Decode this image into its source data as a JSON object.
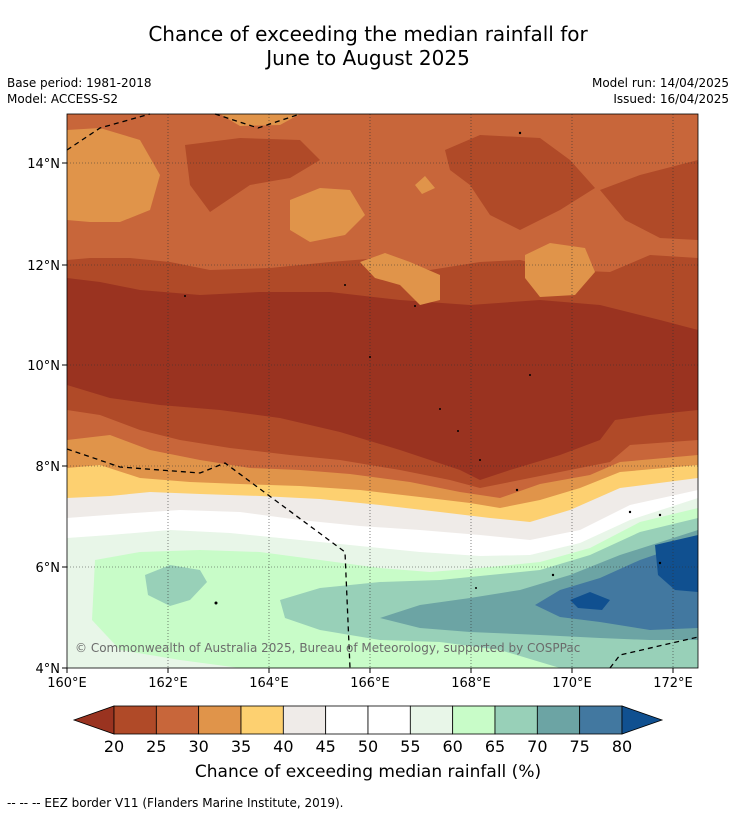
{
  "title_line1": "Chance of exceeding the median rainfall for",
  "title_line2": "June to August 2025",
  "base_period": "Base period: 1981-2018",
  "model": "Model: ACCESS-S2",
  "model_run": "Model run: 14/04/2025",
  "issued": "Issued: 16/04/2025",
  "copyright": "© Commonwealth of Australia 2025, Bureau of Meteorology, supported by COSPPac",
  "footer": "--  --  -- EEZ border V11 (Flanders Marine Institute, 2019).",
  "axes": {
    "lon_labels": [
      "160°E",
      "162°E",
      "164°E",
      "166°E",
      "168°E",
      "170°E",
      "172°E"
    ],
    "lat_labels": [
      "14°N",
      "12°N",
      "10°N",
      "8°N",
      "6°N",
      "4°N"
    ],
    "lon_range": [
      160,
      172.5
    ],
    "lat_range": [
      4,
      15
    ]
  },
  "colorbar": {
    "label": "Chance of exceeding median rainfall (%)",
    "ticks": [
      "20",
      "25",
      "30",
      "35",
      "40",
      "45",
      "50",
      "55",
      "60",
      "65",
      "70",
      "75",
      "80"
    ],
    "colors": [
      "#9a3320",
      "#b04a28",
      "#c8663a",
      "#e0944a",
      "#fdd070",
      "#efebe8",
      "#ffffff",
      "#ffffff",
      "#e8f6e8",
      "#c8fcc8",
      "#98d0b8",
      "#6ca4a4",
      "#4278a0",
      "#105090"
    ],
    "under_color": "#9a3320",
    "over_color": "#105090"
  }
}
